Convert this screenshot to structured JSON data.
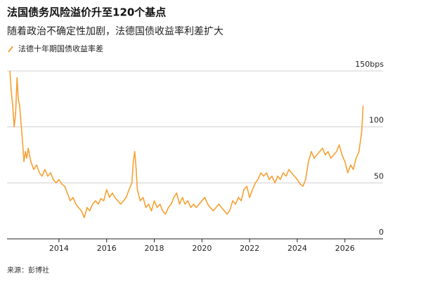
{
  "chart_data": {
    "type": "line",
    "title": "法国债务风险溢价升至120个基点",
    "subtitle": "随着政治不确定性加剧，法德国债收益率利差扩大",
    "source": "来源：彭博社",
    "x": [
      2011.94,
      2012.0,
      2012.06,
      2012.12,
      2012.18,
      2012.24,
      2012.29,
      2012.35,
      2012.41,
      2012.47,
      2012.53,
      2012.59,
      2012.65,
      2012.71,
      2012.82,
      2012.94,
      2013.06,
      2013.18,
      2013.29,
      2013.41,
      2013.53,
      2013.65,
      2013.76,
      2013.88,
      2014.0,
      2014.12,
      2014.24,
      2014.35,
      2014.47,
      2014.59,
      2014.71,
      2014.82,
      2014.94,
      2015.06,
      2015.18,
      2015.29,
      2015.41,
      2015.53,
      2015.65,
      2015.76,
      2015.88,
      2016.0,
      2016.12,
      2016.24,
      2016.35,
      2016.47,
      2016.59,
      2016.71,
      2016.82,
      2016.94,
      2017.06,
      2017.12,
      2017.18,
      2017.24,
      2017.29,
      2017.41,
      2017.53,
      2017.65,
      2017.76,
      2017.88,
      2018.0,
      2018.12,
      2018.24,
      2018.35,
      2018.47,
      2018.59,
      2018.71,
      2018.82,
      2018.94,
      2019.06,
      2019.18,
      2019.29,
      2019.41,
      2019.53,
      2019.65,
      2019.76,
      2019.88,
      2020.0,
      2020.12,
      2020.24,
      2020.35,
      2020.47,
      2020.59,
      2020.71,
      2020.82,
      2020.94,
      2021.06,
      2021.18,
      2021.29,
      2021.41,
      2021.53,
      2021.65,
      2021.76,
      2021.88,
      2022.0,
      2022.12,
      2022.24,
      2022.35,
      2022.47,
      2022.59,
      2022.71,
      2022.82,
      2022.94,
      2023.06,
      2023.18,
      2023.29,
      2023.41,
      2023.53,
      2023.65,
      2023.76,
      2023.88,
      2024.0,
      2024.12,
      2024.24,
      2024.35,
      2024.47,
      2024.59,
      2024.71,
      2024.82,
      2024.94,
      2025.06,
      2025.18,
      2025.29,
      2025.41,
      2025.53,
      2025.65,
      2025.76,
      2025.88,
      2026.0,
      2026.12,
      2026.24,
      2026.35,
      2026.47,
      2026.59,
      2026.71,
      2026.76
    ],
    "series": [
      {
        "name": "法德十年期国债收益率差",
        "color": "#f7a033",
        "values": [
          150,
          131,
          119,
          100,
          112,
          144,
          125,
          119,
          103,
          87,
          69,
          78,
          72,
          81,
          69,
          62,
          66,
          59,
          56,
          62,
          56,
          59,
          53,
          50,
          53,
          49,
          47,
          41,
          34,
          37,
          31,
          28,
          25,
          19,
          28,
          25,
          31,
          34,
          31,
          36,
          34,
          44,
          37,
          41,
          37,
          34,
          31,
          34,
          37,
          44,
          50,
          69,
          78,
          62,
          44,
          34,
          37,
          28,
          31,
          25,
          34,
          28,
          31,
          25,
          22,
          28,
          31,
          37,
          41,
          31,
          37,
          31,
          34,
          28,
          31,
          28,
          31,
          34,
          37,
          31,
          28,
          25,
          28,
          31,
          28,
          25,
          22,
          26,
          34,
          31,
          37,
          34,
          44,
          47,
          37,
          44,
          50,
          53,
          59,
          56,
          59,
          53,
          56,
          50,
          56,
          53,
          59,
          56,
          62,
          59,
          56,
          53,
          49,
          47,
          53,
          69,
          78,
          72,
          75,
          78,
          81,
          75,
          78,
          72,
          75,
          78,
          84,
          75,
          69,
          59,
          66,
          62,
          72,
          78,
          97,
          119
        ]
      }
    ],
    "xlim": [
      2011.82,
      2027.6
    ],
    "xticks": [
      2014,
      2016,
      2018,
      2020,
      2022,
      2024,
      2026
    ],
    "ylim": [
      0,
      150
    ],
    "yticks": [
      0,
      50,
      100,
      {
        "value": 150,
        "label": "150bps"
      }
    ],
    "grid": true
  }
}
